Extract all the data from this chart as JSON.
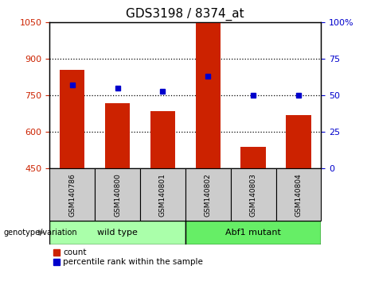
{
  "title": "GDS3198 / 8374_at",
  "samples": [
    "GSM140786",
    "GSM140800",
    "GSM140801",
    "GSM140802",
    "GSM140803",
    "GSM140804"
  ],
  "counts": [
    855,
    720,
    685,
    1050,
    540,
    670
  ],
  "percentiles": [
    57,
    55,
    53,
    63,
    50,
    50
  ],
  "ylim_left": [
    450,
    1050
  ],
  "ylim_right": [
    0,
    100
  ],
  "yticks_left": [
    450,
    600,
    750,
    900,
    1050
  ],
  "yticks_right": [
    0,
    25,
    50,
    75,
    100
  ],
  "bar_color": "#cc2200",
  "marker_color": "#0000cc",
  "wild_type_label": "wild type",
  "mutant_label": "Abf1 mutant",
  "genotype_label": "genotype/variation",
  "legend_count": "count",
  "legend_percentile": "percentile rank within the sample",
  "wild_type_color": "#aaffaa",
  "mutant_color": "#66ee66",
  "sample_box_color": "#cccccc",
  "n_wild_type": 3,
  "n_mutant": 3,
  "title_fontsize": 11,
  "tick_fontsize": 8,
  "label_fontsize": 8,
  "sample_fontsize": 6.5,
  "legend_fontsize": 7.5
}
